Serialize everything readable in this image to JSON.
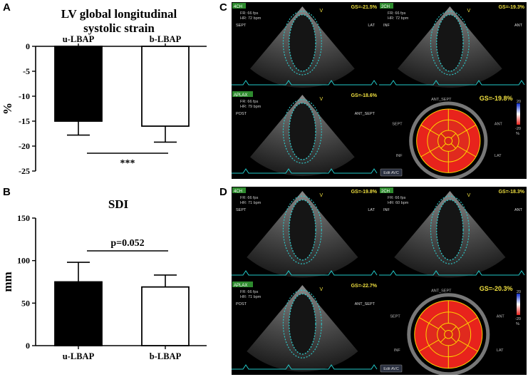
{
  "panels": {
    "A": {
      "letter": "A",
      "chart_data": {
        "type": "bar",
        "title": "LV global longitudinal systolic strain",
        "title_lines": [
          "LV global longitudinal",
          "systolic strain"
        ],
        "categories": [
          "u-LBAP",
          "b-LBAP"
        ],
        "values": [
          -15,
          -16
        ],
        "error": [
          2.8,
          3.2
        ],
        "bar_colors": [
          "#000000",
          "#ffffff"
        ],
        "ylabel": "%",
        "ylim": [
          -25,
          0
        ],
        "yticks": [
          0,
          -5,
          -10,
          -15,
          -20,
          -25
        ],
        "x_axis_position": "top",
        "significance": "***",
        "grid": false
      }
    },
    "B": {
      "letter": "B",
      "chart_data": {
        "type": "bar",
        "title": "SDI",
        "categories": [
          "u-LBAP",
          "b-LBAP"
        ],
        "values": [
          75,
          69
        ],
        "error": [
          23,
          14
        ],
        "bar_colors": [
          "#000000",
          "#ffffff"
        ],
        "ylabel": "mm",
        "ylim": [
          0,
          150
        ],
        "yticks": [
          0,
          50,
          100,
          150
        ],
        "x_axis_position": "bottom",
        "significance": "p=0.052",
        "grid": false
      }
    },
    "C": {
      "letter": "C",
      "views": [
        {
          "view": "4CH",
          "gs": "GS=-21.5%",
          "fr": "FR: 66 fps",
          "hr": "HR: 72 bpm",
          "left": "SEPT",
          "right": "LAT"
        },
        {
          "view": "2CH",
          "gs": "GS=-19.3%",
          "fr": "FR: 66 fps",
          "hr": "HR: 72 bpm",
          "left": "INF",
          "right": "ANT"
        },
        {
          "view": "APLAX",
          "gs": "GS=-18.6%",
          "fr": "FR: 66 fps",
          "hr": "HR: 79 bpm",
          "left": "POST",
          "right": "ANT_SEPT"
        }
      ],
      "bullseye": {
        "gs": "GS=-19.8%",
        "labels": [
          "ANT_SEPT",
          "ANT",
          "SEPT",
          "LAT",
          "INF",
          "POST"
        ],
        "button": "Edit AVC",
        "scale": [
          "20",
          "-20",
          "%"
        ]
      }
    },
    "D": {
      "letter": "D",
      "views": [
        {
          "view": "4CH",
          "gs": "GS=-19.8%",
          "fr": "FR: 66 fps",
          "hr": "HR: 71 bpm",
          "left": "SEPT",
          "right": "LAT"
        },
        {
          "view": "2CH",
          "gs": "GS=-18.3%",
          "fr": "FR: 66 fps",
          "hr": "HR: 60 bpm",
          "left": "INF",
          "right": "ANT"
        },
        {
          "view": "APLAX",
          "gs": "GS=-22.7%",
          "fr": "FR: 66 fps",
          "hr": "HR: 71 bpm",
          "left": "POST",
          "right": "ANT_SEPT"
        }
      ],
      "bullseye": {
        "gs": "GS=-20.3%",
        "labels": [
          "ANT_SEPT",
          "ANT",
          "SEPT",
          "LAT",
          "INF",
          "POST"
        ],
        "button": "Edit AVC",
        "scale": [
          "20",
          "-20",
          "%"
        ]
      }
    }
  }
}
